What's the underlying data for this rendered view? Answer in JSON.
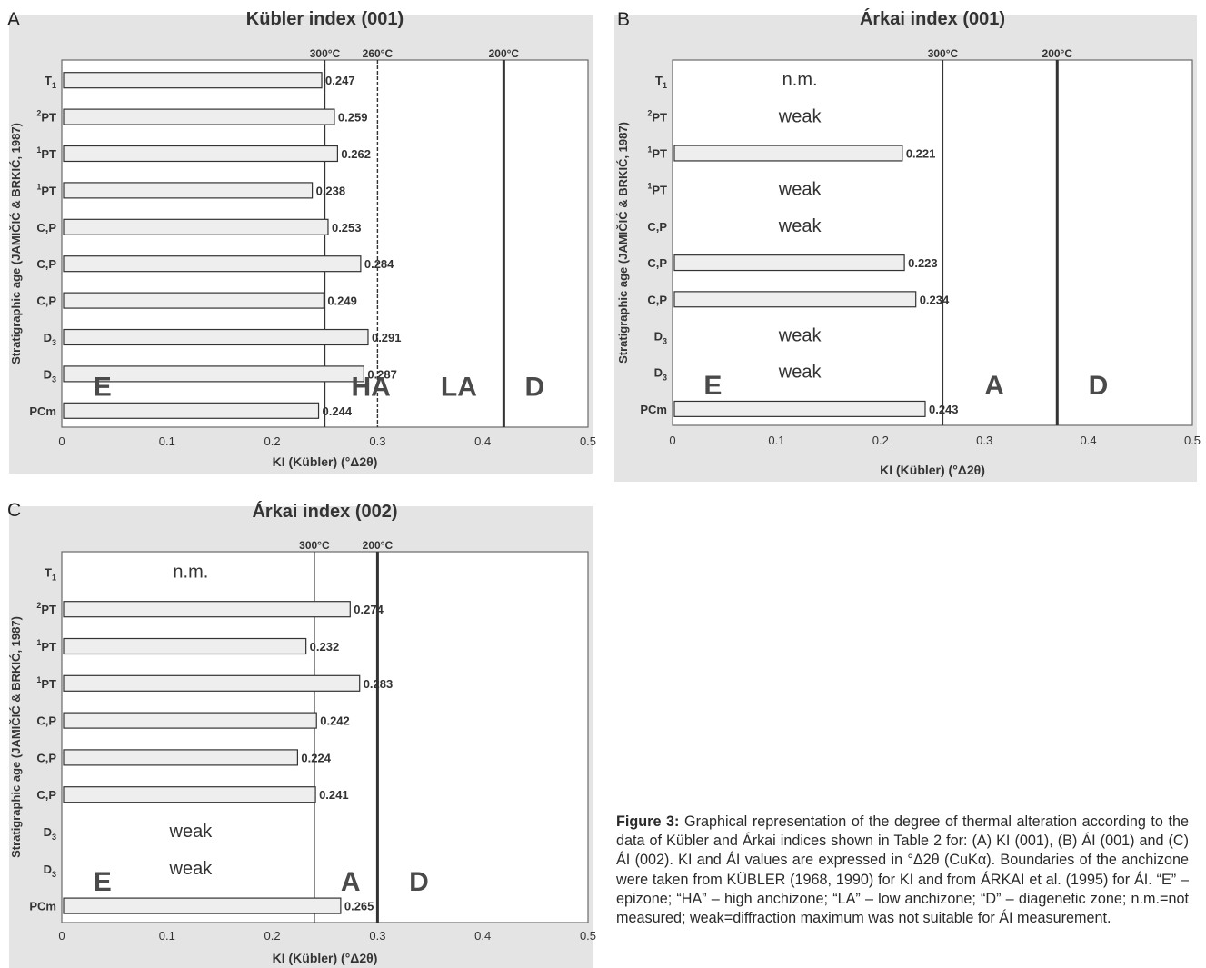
{
  "chart_data": [
    {
      "type": "bar",
      "panel": "A",
      "title": "Kübler index (001)",
      "xlabel": "KI (Kübler)  (°Δ2θ)",
      "ylabel": "Stratigraphic age (JAMIČIĆ & BRKIĆ, 1987)",
      "xlim": [
        0,
        0.5
      ],
      "xticks": [
        "0",
        "0.1",
        "0.2",
        "0.3",
        "0.4",
        "0.5"
      ],
      "categories": [
        {
          "base": "T",
          "sup": "",
          "sub": "1"
        },
        {
          "base": "PT",
          "sup": "2",
          "sub": ""
        },
        {
          "base": "PT",
          "sup": "1",
          "sub": ""
        },
        {
          "base": "PT",
          "sup": "1",
          "sub": ""
        },
        {
          "base": "C,P",
          "sup": "",
          "sub": ""
        },
        {
          "base": "C,P",
          "sup": "",
          "sub": ""
        },
        {
          "base": "C,P",
          "sup": "",
          "sub": ""
        },
        {
          "base": "D",
          "sup": "",
          "sub": "3"
        },
        {
          "base": "D",
          "sup": "",
          "sub": "3"
        },
        {
          "base": "PCm",
          "sup": "",
          "sub": ""
        }
      ],
      "values": [
        0.247,
        0.259,
        0.262,
        0.238,
        0.253,
        0.284,
        0.249,
        0.291,
        0.287,
        0.244
      ],
      "value_labels": [
        "0.247",
        "0.259",
        "0.262",
        "0.238",
        "0.253",
        "0.284",
        "0.249",
        "0.291",
        "0.287",
        "0.244"
      ],
      "notes": [],
      "boundaries": [
        {
          "x": 0.25,
          "label": "300°C",
          "style": "thin"
        },
        {
          "x": 0.3,
          "label": "260°C",
          "style": "dashed"
        },
        {
          "x": 0.42,
          "label": "200°C",
          "style": "thick"
        }
      ],
      "zones": [
        {
          "label": "E",
          "x": 0.03
        },
        {
          "label": "HA",
          "x": 0.275
        },
        {
          "label": "LA",
          "x": 0.36
        },
        {
          "label": "D",
          "x": 0.44
        }
      ]
    },
    {
      "type": "bar",
      "panel": "B",
      "title": "Árkai index (001)",
      "xlabel": "KI (Kübler)  (°Δ2θ)",
      "ylabel": "Stratigraphic age (JAMIČIĆ & BRKIĆ, 1987)",
      "xlim": [
        0,
        0.5
      ],
      "xticks": [
        "0",
        "0.1",
        "0.2",
        "0.3",
        "0.4",
        "0.5"
      ],
      "categories": [
        {
          "base": "T",
          "sup": "",
          "sub": "1"
        },
        {
          "base": "PT",
          "sup": "2",
          "sub": ""
        },
        {
          "base": "PT",
          "sup": "1",
          "sub": ""
        },
        {
          "base": "PT",
          "sup": "1",
          "sub": ""
        },
        {
          "base": "C,P",
          "sup": "",
          "sub": ""
        },
        {
          "base": "C,P",
          "sup": "",
          "sub": ""
        },
        {
          "base": "C,P",
          "sup": "",
          "sub": ""
        },
        {
          "base": "D",
          "sup": "",
          "sub": "3"
        },
        {
          "base": "D",
          "sup": "",
          "sub": "3"
        },
        {
          "base": "PCm",
          "sup": "",
          "sub": ""
        }
      ],
      "values": [
        null,
        null,
        0.221,
        null,
        null,
        0.223,
        0.234,
        null,
        null,
        0.243
      ],
      "value_labels": [
        "",
        "",
        "0.221",
        "",
        "",
        "0.223",
        "0.234",
        "",
        "",
        "0.243"
      ],
      "notes": [
        "n.m.",
        "weak",
        "",
        "weak",
        "weak",
        "",
        "",
        "weak",
        "weak",
        ""
      ],
      "boundaries": [
        {
          "x": 0.26,
          "label": "300°C",
          "style": "thin"
        },
        {
          "x": 0.37,
          "label": "200°C",
          "style": "thick"
        }
      ],
      "zones": [
        {
          "label": "E",
          "x": 0.03
        },
        {
          "label": "A",
          "x": 0.3
        },
        {
          "label": "D",
          "x": 0.4
        }
      ]
    },
    {
      "type": "bar",
      "panel": "C",
      "title": "Árkai index (002)",
      "xlabel": "KI (Kübler)  (°Δ2θ)",
      "ylabel": "Stratigraphic age (JAMIČIĆ & BRKIĆ, 1987)",
      "xlim": [
        0,
        0.5
      ],
      "xticks": [
        "0",
        "0.1",
        "0.2",
        "0.3",
        "0.4",
        "0.5"
      ],
      "categories": [
        {
          "base": "T",
          "sup": "",
          "sub": "1"
        },
        {
          "base": "PT",
          "sup": "2",
          "sub": ""
        },
        {
          "base": "PT",
          "sup": "1",
          "sub": ""
        },
        {
          "base": "PT",
          "sup": "1",
          "sub": ""
        },
        {
          "base": "C,P",
          "sup": "",
          "sub": ""
        },
        {
          "base": "C,P",
          "sup": "",
          "sub": ""
        },
        {
          "base": "C,P",
          "sup": "",
          "sub": ""
        },
        {
          "base": "D",
          "sup": "",
          "sub": "3"
        },
        {
          "base": "D",
          "sup": "",
          "sub": "3"
        },
        {
          "base": "PCm",
          "sup": "",
          "sub": ""
        }
      ],
      "values": [
        null,
        0.274,
        0.232,
        0.283,
        0.242,
        0.224,
        0.241,
        null,
        null,
        0.265
      ],
      "value_labels": [
        "",
        "0.274",
        "0.232",
        "0.283",
        "0.242",
        "0.224",
        "0.241",
        "",
        "",
        "0.265"
      ],
      "notes": [
        "n.m.",
        "",
        "",
        "",
        "",
        "",
        "",
        "weak",
        "weak",
        ""
      ],
      "boundaries": [
        {
          "x": 0.24,
          "label": "300°C",
          "style": "thin"
        },
        {
          "x": 0.3,
          "label": "200°C",
          "style": "thick"
        }
      ],
      "zones": [
        {
          "label": "E",
          "x": 0.03
        },
        {
          "label": "A",
          "x": 0.265
        },
        {
          "label": "D",
          "x": 0.33
        }
      ]
    }
  ],
  "caption": {
    "label": "Figure 3:",
    "text": "Graphical representation of the degree of thermal alteration according to the data of Kübler and Árkai indices shown in Table 2 for: (A) KI (001), (B) ÁI (001) and (C) ÁI (002). KI and ÁI values are expressed in °Δ2θ (CuKα). Boundaries of the anchizone were taken from KÜBLER (1968, 1990) for KI and from ÁRKAI et al. (1995) for ÁI. “E” – epizone; “HA” – high anchizone; “LA” – low anchizone; “D” – diagenetic zone; n.m.=not measured; weak=diffraction maximum was not suitable for ÁI measurement."
  }
}
